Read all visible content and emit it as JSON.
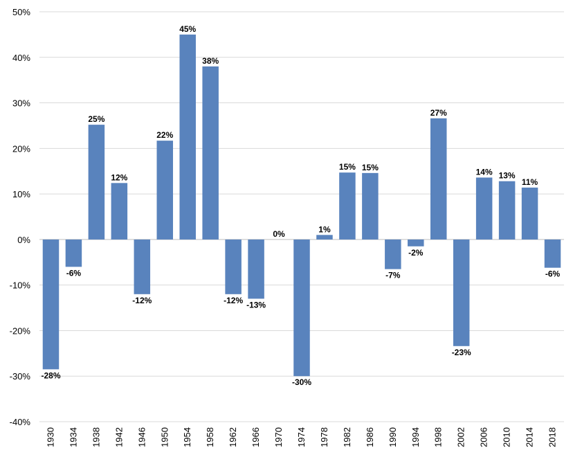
{
  "chart_data": {
    "type": "bar",
    "categories": [
      "1930",
      "1934",
      "1938",
      "1942",
      "1946",
      "1950",
      "1954",
      "1958",
      "1962",
      "1966",
      "1970",
      "1974",
      "1978",
      "1982",
      "1986",
      "1990",
      "1994",
      "1998",
      "2002",
      "2006",
      "2010",
      "2014",
      "2018"
    ],
    "values": [
      -28.5,
      -6,
      25.2,
      12.4,
      -12,
      21.7,
      45,
      38,
      -12,
      -13,
      0,
      -30,
      1,
      14.7,
      14.6,
      -6.5,
      -1.5,
      26.6,
      -23.4,
      13.6,
      12.8,
      11.4,
      -6.2
    ],
    "data_labels": [
      "-28%",
      "-6%",
      "25%",
      "12%",
      "-12%",
      "22%",
      "45%",
      "38%",
      "-12%",
      "-13%",
      "0%",
      "-30%",
      "1%",
      "15%",
      "15%",
      "-7%",
      "-2%",
      "27%",
      "-23%",
      "14%",
      "13%",
      "11%",
      "-6%"
    ],
    "y_ticks": [
      50,
      40,
      30,
      20,
      10,
      0,
      -10,
      -20,
      -30,
      -40
    ],
    "y_tick_labels": [
      "50%",
      "40%",
      "30%",
      "20%",
      "10%",
      "0%",
      "-10%",
      "-20%",
      "-30%",
      "-40%"
    ],
    "ylim": [
      -40,
      50
    ],
    "title": "",
    "xlabel": "",
    "ylabel": "",
    "grid": true,
    "legend": "none",
    "bar_color": "#5983bd"
  }
}
